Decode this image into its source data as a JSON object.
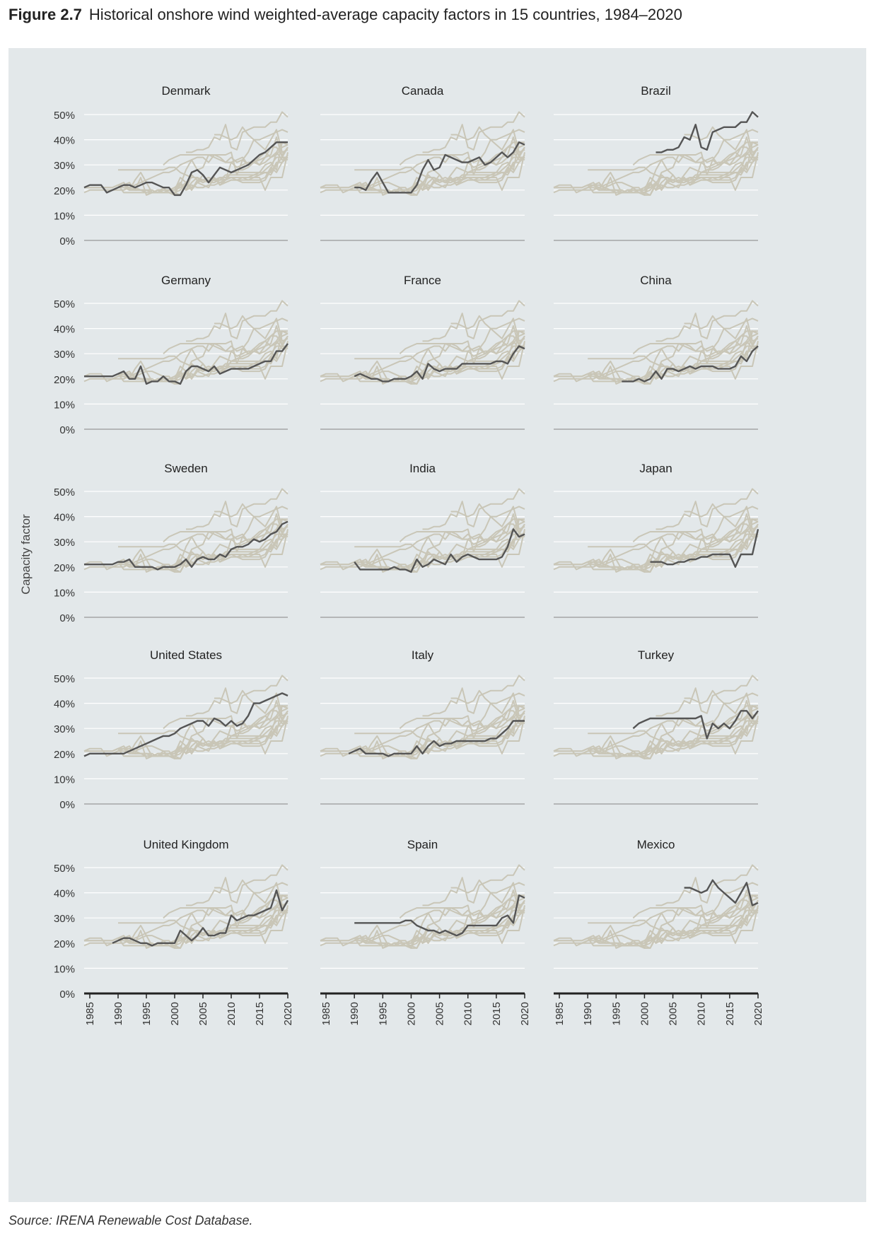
{
  "figure": {
    "number": "Figure 2.7",
    "title": "Historical onshore wind weighted-average capacity factors in 15 countries, 1984–2020",
    "source": "Source: IRENA Renewable Cost Database."
  },
  "colors": {
    "panel_bg": "#e3e8ea",
    "highlight_line": "#555555",
    "background_lines": "#c9c6b7",
    "axis": "#999999",
    "axis_bottom": "#222222"
  },
  "chart_data": {
    "type": "line",
    "layout": "small-multiples 5x3",
    "ylabel": "Capacity factor",
    "y_ticks": [
      "0%",
      "10%",
      "20%",
      "30%",
      "40%",
      "50%"
    ],
    "x_ticks": [
      "1985",
      "1990",
      "1995",
      "2000",
      "2005",
      "2010",
      "2015",
      "2020"
    ],
    "xlim": [
      1984,
      2020
    ],
    "ylim": [
      0,
      0.5
    ],
    "grid": true,
    "note": "Each panel highlights one country (dark line) over all other countries (light grey lines).",
    "series": [
      {
        "name": "Denmark",
        "x": [
          1984,
          1985,
          1986,
          1987,
          1988,
          1989,
          1990,
          1991,
          1992,
          1993,
          1994,
          1995,
          1996,
          1997,
          1998,
          1999,
          2000,
          2001,
          2002,
          2003,
          2004,
          2005,
          2006,
          2007,
          2008,
          2009,
          2010,
          2011,
          2012,
          2013,
          2014,
          2015,
          2016,
          2017,
          2018,
          2019,
          2020
        ],
        "y": [
          0.21,
          0.22,
          0.22,
          0.22,
          0.19,
          0.2,
          0.21,
          0.22,
          0.22,
          0.21,
          0.22,
          0.23,
          0.23,
          0.22,
          0.21,
          0.21,
          0.18,
          0.18,
          0.22,
          0.27,
          0.28,
          0.26,
          0.23,
          0.26,
          0.29,
          0.28,
          0.27,
          0.28,
          0.29,
          0.3,
          0.32,
          0.34,
          0.35,
          0.37,
          0.39,
          0.39,
          0.39
        ]
      },
      {
        "name": "Canada",
        "x": [
          1990,
          1991,
          1992,
          1993,
          1994,
          1995,
          1996,
          1997,
          1998,
          1999,
          2000,
          2001,
          2002,
          2003,
          2004,
          2005,
          2006,
          2007,
          2008,
          2009,
          2010,
          2011,
          2012,
          2013,
          2014,
          2015,
          2016,
          2017,
          2018,
          2019,
          2020
        ],
        "y": [
          0.21,
          0.21,
          0.2,
          0.24,
          0.27,
          0.23,
          0.19,
          0.19,
          0.19,
          0.19,
          0.19,
          0.22,
          0.28,
          0.32,
          0.28,
          0.29,
          0.34,
          0.33,
          0.32,
          0.31,
          0.31,
          0.32,
          0.33,
          0.3,
          0.31,
          0.33,
          0.35,
          0.33,
          0.35,
          0.39,
          0.38
        ]
      },
      {
        "name": "Brazil",
        "x": [
          2002,
          2003,
          2004,
          2005,
          2006,
          2007,
          2008,
          2009,
          2010,
          2011,
          2012,
          2013,
          2014,
          2015,
          2016,
          2017,
          2018,
          2019,
          2020
        ],
        "y": [
          0.35,
          0.35,
          0.36,
          0.36,
          0.37,
          0.41,
          0.4,
          0.46,
          0.37,
          0.36,
          0.43,
          0.44,
          0.45,
          0.45,
          0.45,
          0.47,
          0.47,
          0.51,
          0.49
        ]
      },
      {
        "name": "Germany",
        "x": [
          1984,
          1985,
          1986,
          1987,
          1988,
          1989,
          1990,
          1991,
          1992,
          1993,
          1994,
          1995,
          1996,
          1997,
          1998,
          1999,
          2000,
          2001,
          2002,
          2003,
          2004,
          2005,
          2006,
          2007,
          2008,
          2009,
          2010,
          2011,
          2012,
          2013,
          2014,
          2015,
          2016,
          2017,
          2018,
          2019,
          2020
        ],
        "y": [
          0.21,
          0.21,
          0.21,
          0.21,
          0.21,
          0.21,
          0.22,
          0.23,
          0.2,
          0.2,
          0.25,
          0.18,
          0.19,
          0.19,
          0.21,
          0.19,
          0.19,
          0.18,
          0.23,
          0.25,
          0.25,
          0.24,
          0.23,
          0.25,
          0.22,
          0.23,
          0.24,
          0.24,
          0.24,
          0.24,
          0.25,
          0.26,
          0.27,
          0.27,
          0.31,
          0.31,
          0.34
        ]
      },
      {
        "name": "France",
        "x": [
          1990,
          1991,
          1992,
          1993,
          1994,
          1995,
          1996,
          1997,
          1998,
          1999,
          2000,
          2001,
          2002,
          2003,
          2004,
          2005,
          2006,
          2007,
          2008,
          2009,
          2010,
          2011,
          2012,
          2013,
          2014,
          2015,
          2016,
          2017,
          2018,
          2019,
          2020
        ],
        "y": [
          0.21,
          0.22,
          0.21,
          0.2,
          0.2,
          0.19,
          0.19,
          0.2,
          0.2,
          0.2,
          0.21,
          0.23,
          0.2,
          0.26,
          0.24,
          0.23,
          0.24,
          0.24,
          0.24,
          0.26,
          0.26,
          0.26,
          0.26,
          0.26,
          0.26,
          0.27,
          0.27,
          0.26,
          0.3,
          0.33,
          0.32
        ]
      },
      {
        "name": "China",
        "x": [
          1996,
          1997,
          1998,
          1999,
          2000,
          2001,
          2002,
          2003,
          2004,
          2005,
          2006,
          2007,
          2008,
          2009,
          2010,
          2011,
          2012,
          2013,
          2014,
          2015,
          2016,
          2017,
          2018,
          2019,
          2020
        ],
        "y": [
          0.19,
          0.19,
          0.19,
          0.2,
          0.19,
          0.2,
          0.23,
          0.2,
          0.24,
          0.24,
          0.23,
          0.24,
          0.25,
          0.24,
          0.25,
          0.25,
          0.25,
          0.24,
          0.24,
          0.24,
          0.25,
          0.29,
          0.27,
          0.31,
          0.33
        ]
      },
      {
        "name": "Sweden",
        "x": [
          1984,
          1985,
          1986,
          1987,
          1988,
          1989,
          1990,
          1991,
          1992,
          1993,
          1994,
          1995,
          1996,
          1997,
          1998,
          1999,
          2000,
          2001,
          2002,
          2003,
          2004,
          2005,
          2006,
          2007,
          2008,
          2009,
          2010,
          2011,
          2012,
          2013,
          2014,
          2015,
          2016,
          2017,
          2018,
          2019,
          2020
        ],
        "y": [
          0.21,
          0.21,
          0.21,
          0.21,
          0.21,
          0.21,
          0.22,
          0.22,
          0.23,
          0.2,
          0.2,
          0.2,
          0.2,
          0.19,
          0.2,
          0.2,
          0.2,
          0.21,
          0.23,
          0.2,
          0.23,
          0.24,
          0.23,
          0.23,
          0.25,
          0.24,
          0.27,
          0.28,
          0.28,
          0.29,
          0.31,
          0.3,
          0.31,
          0.33,
          0.34,
          0.37,
          0.38
        ]
      },
      {
        "name": "India",
        "x": [
          1990,
          1991,
          1992,
          1993,
          1994,
          1995,
          1996,
          1997,
          1998,
          1999,
          2000,
          2001,
          2002,
          2003,
          2004,
          2005,
          2006,
          2007,
          2008,
          2009,
          2010,
          2011,
          2012,
          2013,
          2014,
          2015,
          2016,
          2017,
          2018,
          2019,
          2020
        ],
        "y": [
          0.22,
          0.19,
          0.19,
          0.19,
          0.19,
          0.19,
          0.19,
          0.2,
          0.19,
          0.19,
          0.18,
          0.23,
          0.2,
          0.21,
          0.23,
          0.22,
          0.21,
          0.25,
          0.22,
          0.24,
          0.25,
          0.24,
          0.23,
          0.23,
          0.23,
          0.23,
          0.24,
          0.28,
          0.35,
          0.32,
          0.33
        ]
      },
      {
        "name": "Japan",
        "x": [
          2001,
          2002,
          2003,
          2004,
          2005,
          2006,
          2007,
          2008,
          2009,
          2010,
          2011,
          2012,
          2013,
          2014,
          2015,
          2016,
          2017,
          2018,
          2019,
          2020
        ],
        "y": [
          0.22,
          0.22,
          0.22,
          0.21,
          0.21,
          0.22,
          0.22,
          0.23,
          0.23,
          0.24,
          0.24,
          0.25,
          0.25,
          0.25,
          0.25,
          0.2,
          0.25,
          0.25,
          0.25,
          0.35
        ]
      },
      {
        "name": "United States",
        "x": [
          1984,
          1985,
          1986,
          1987,
          1988,
          1989,
          1990,
          1991,
          1992,
          1993,
          1994,
          1995,
          1996,
          1997,
          1998,
          1999,
          2000,
          2001,
          2002,
          2003,
          2004,
          2005,
          2006,
          2007,
          2008,
          2009,
          2010,
          2011,
          2012,
          2013,
          2014,
          2015,
          2016,
          2017,
          2018,
          2019,
          2020
        ],
        "y": [
          0.19,
          0.2,
          0.2,
          0.2,
          0.2,
          0.2,
          0.2,
          0.2,
          0.21,
          0.22,
          0.23,
          0.24,
          0.25,
          0.26,
          0.27,
          0.27,
          0.28,
          0.3,
          0.31,
          0.32,
          0.33,
          0.33,
          0.31,
          0.34,
          0.33,
          0.31,
          0.33,
          0.31,
          0.32,
          0.35,
          0.4,
          0.4,
          0.41,
          0.42,
          0.43,
          0.44,
          0.43
        ]
      },
      {
        "name": "Italy",
        "x": [
          1989,
          1990,
          1991,
          1992,
          1993,
          1994,
          1995,
          1996,
          1997,
          1998,
          1999,
          2000,
          2001,
          2002,
          2003,
          2004,
          2005,
          2006,
          2007,
          2008,
          2009,
          2010,
          2011,
          2012,
          2013,
          2014,
          2015,
          2016,
          2017,
          2018,
          2019,
          2020
        ],
        "y": [
          0.2,
          0.21,
          0.22,
          0.2,
          0.2,
          0.2,
          0.2,
          0.19,
          0.2,
          0.2,
          0.2,
          0.2,
          0.23,
          0.2,
          0.23,
          0.25,
          0.23,
          0.24,
          0.24,
          0.25,
          0.25,
          0.25,
          0.25,
          0.25,
          0.25,
          0.26,
          0.26,
          0.28,
          0.3,
          0.33,
          0.33,
          0.33
        ]
      },
      {
        "name": "Turkey",
        "x": [
          1998,
          1999,
          2000,
          2001,
          2002,
          2003,
          2004,
          2005,
          2006,
          2007,
          2008,
          2009,
          2010,
          2011,
          2012,
          2013,
          2014,
          2015,
          2016,
          2017,
          2018,
          2019,
          2020
        ],
        "y": [
          0.3,
          0.32,
          0.33,
          0.34,
          0.34,
          0.34,
          0.34,
          0.34,
          0.34,
          0.34,
          0.34,
          0.34,
          0.35,
          0.26,
          0.32,
          0.3,
          0.32,
          0.3,
          0.33,
          0.37,
          0.37,
          0.34,
          0.37
        ]
      },
      {
        "name": "United Kingdom",
        "x": [
          1989,
          1990,
          1991,
          1992,
          1993,
          1994,
          1995,
          1996,
          1997,
          1998,
          1999,
          2000,
          2001,
          2002,
          2003,
          2004,
          2005,
          2006,
          2007,
          2008,
          2009,
          2010,
          2011,
          2012,
          2013,
          2014,
          2015,
          2016,
          2017,
          2018,
          2019,
          2020
        ],
        "y": [
          0.2,
          0.21,
          0.22,
          0.22,
          0.21,
          0.2,
          0.2,
          0.19,
          0.2,
          0.2,
          0.2,
          0.2,
          0.25,
          0.23,
          0.21,
          0.23,
          0.26,
          0.23,
          0.23,
          0.24,
          0.24,
          0.31,
          0.29,
          0.3,
          0.31,
          0.31,
          0.32,
          0.33,
          0.34,
          0.41,
          0.33,
          0.37
        ]
      },
      {
        "name": "Spain",
        "x": [
          1990,
          1991,
          1992,
          1993,
          1994,
          1995,
          1996,
          1997,
          1998,
          1999,
          2000,
          2001,
          2002,
          2003,
          2004,
          2005,
          2006,
          2007,
          2008,
          2009,
          2010,
          2011,
          2012,
          2013,
          2014,
          2015,
          2016,
          2017,
          2018,
          2019,
          2020
        ],
        "y": [
          0.28,
          0.28,
          0.28,
          0.28,
          0.28,
          0.28,
          0.28,
          0.28,
          0.28,
          0.29,
          0.29,
          0.27,
          0.26,
          0.25,
          0.25,
          0.24,
          0.25,
          0.24,
          0.23,
          0.24,
          0.27,
          0.27,
          0.27,
          0.27,
          0.27,
          0.27,
          0.3,
          0.31,
          0.28,
          0.39,
          0.38
        ]
      },
      {
        "name": "Mexico",
        "x": [
          2007,
          2008,
          2009,
          2010,
          2011,
          2012,
          2013,
          2014,
          2015,
          2016,
          2017,
          2018,
          2019,
          2020
        ],
        "y": [
          0.42,
          0.42,
          0.41,
          0.4,
          0.41,
          0.45,
          0.42,
          0.4,
          0.38,
          0.36,
          0.4,
          0.44,
          0.35,
          0.36
        ]
      }
    ]
  }
}
